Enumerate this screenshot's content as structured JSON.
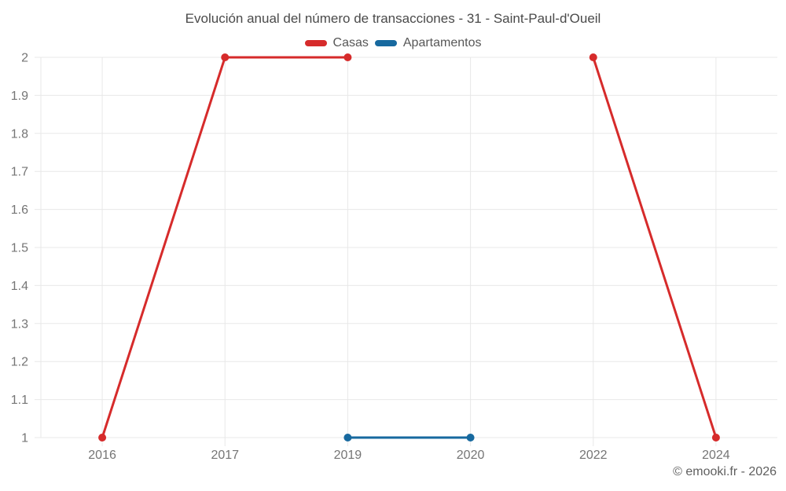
{
  "chart_data": {
    "type": "line",
    "title": "Evolución anual del número de transacciones - 31 - Saint-Paul-d'Oueil",
    "categories": [
      "2016",
      "2017",
      "2019",
      "2020",
      "2022",
      "2024"
    ],
    "series": [
      {
        "name": "Casas",
        "color": "#d62b2b",
        "values": [
          1,
          2,
          2,
          null,
          2,
          1
        ]
      },
      {
        "name": "Apartamentos",
        "color": "#17699f",
        "values": [
          null,
          null,
          1,
          1,
          null,
          null
        ]
      }
    ],
    "ylim": [
      1,
      2
    ],
    "ytick_labels": [
      "1",
      "1.1",
      "1.2",
      "1.3",
      "1.4",
      "1.5",
      "1.6",
      "1.7",
      "1.8",
      "1.9",
      "2"
    ],
    "xlabel": "",
    "ylabel": "",
    "grid": true,
    "legend_position": "top"
  },
  "footer": {
    "watermark": "© emooki.fr - 2026"
  },
  "colors": {
    "background": "#ffffff",
    "grid": "#e8e8e8",
    "axis_label": "#757575",
    "title": "#4a4a4a",
    "legend_text": "#575757",
    "watermark": "#5f5f5f",
    "casas": "#d62b2b",
    "apartamentos": "#17699f"
  }
}
